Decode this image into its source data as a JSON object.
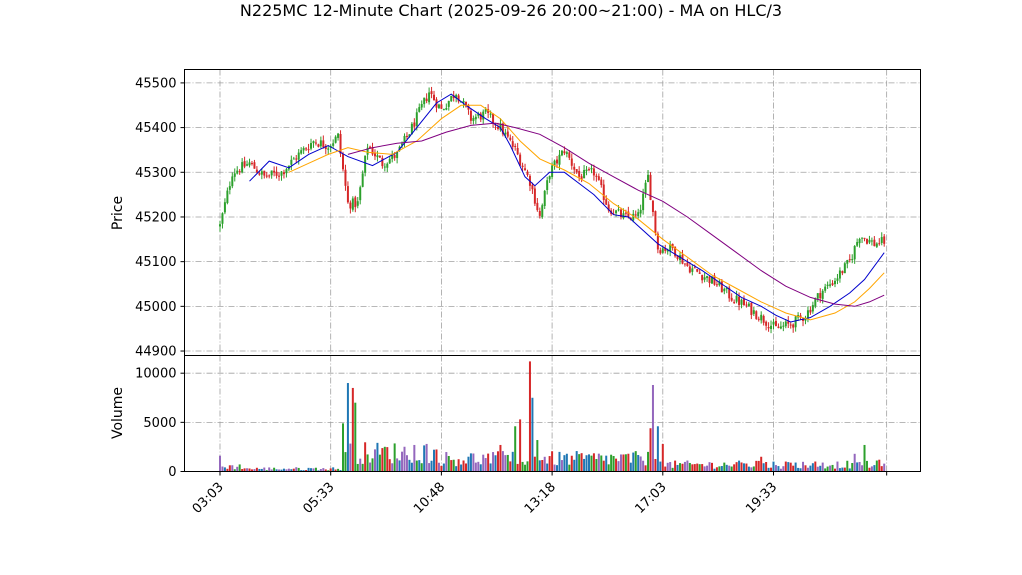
{
  "chart_data": {
    "type": "candlestick",
    "title": "N225MC 12-Minute Chart (2025-09-26 20:00~21:00) - MA on HLC/3",
    "price_panel": {
      "ylabel": "Price",
      "ylim": [
        44890,
        45530
      ],
      "yticks": [
        44900,
        45000,
        45100,
        45200,
        45300,
        45400,
        45500
      ]
    },
    "volume_panel": {
      "ylabel": "Volume",
      "ylim": [
        0,
        11800
      ],
      "yticks": [
        0,
        5000,
        10000
      ]
    },
    "x_tick_labels": [
      "03:03",
      "05:33",
      "10:48",
      "13:18",
      "17:03",
      "19:33"
    ],
    "grid": true,
    "colors": {
      "up": "#2ca02c",
      "down": "#d62728",
      "vol_a": "#1f77b4",
      "vol_b": "#d62728",
      "vol_c": "#2ca02c",
      "vol_d": "#9467bd",
      "ma_short": "#0000cc",
      "ma_mid": "#ffa500",
      "ma_long": "#800080"
    },
    "close_path": [
      [
        0,
        45180
      ],
      [
        5,
        45300
      ],
      [
        12,
        45320
      ],
      [
        18,
        45290
      ],
      [
        25,
        45300
      ],
      [
        32,
        45340
      ],
      [
        38,
        45370
      ],
      [
        44,
        45360
      ],
      [
        48,
        45380
      ],
      [
        52,
        45230
      ],
      [
        56,
        45230
      ],
      [
        60,
        45360
      ],
      [
        66,
        45320
      ],
      [
        72,
        45340
      ],
      [
        78,
        45400
      ],
      [
        85,
        45480
      ],
      [
        90,
        45440
      ],
      [
        96,
        45480
      ],
      [
        102,
        45420
      ],
      [
        108,
        45430
      ],
      [
        114,
        45400
      ],
      [
        120,
        45350
      ],
      [
        126,
        45280
      ],
      [
        130,
        45200
      ],
      [
        134,
        45300
      ],
      [
        140,
        45350
      ],
      [
        146,
        45290
      ],
      [
        152,
        45300
      ],
      [
        158,
        45220
      ],
      [
        164,
        45200
      ],
      [
        170,
        45200
      ],
      [
        174,
        45290
      ],
      [
        178,
        45130
      ],
      [
        184,
        45130
      ],
      [
        190,
        45090
      ],
      [
        196,
        45070
      ],
      [
        202,
        45050
      ],
      [
        208,
        45020
      ],
      [
        214,
        45000
      ],
      [
        220,
        44975
      ],
      [
        226,
        44950
      ],
      [
        232,
        44960
      ],
      [
        238,
        44980
      ],
      [
        244,
        45030
      ],
      [
        250,
        45060
      ],
      [
        256,
        45100
      ],
      [
        260,
        45160
      ],
      [
        266,
        45140
      ],
      [
        270,
        45145
      ]
    ],
    "volume_spikes": [
      [
        0,
        1600
      ],
      [
        50,
        4900
      ],
      [
        52,
        9000
      ],
      [
        54,
        8500
      ],
      [
        55,
        7000
      ],
      [
        79,
        2700
      ],
      [
        114,
        2700
      ],
      [
        120,
        4600
      ],
      [
        122,
        5300
      ],
      [
        126,
        11200
      ],
      [
        127,
        7500
      ],
      [
        129,
        3200
      ],
      [
        175,
        4400
      ],
      [
        176,
        8800
      ],
      [
        178,
        4600
      ],
      [
        180,
        2800
      ],
      [
        220,
        1500
      ],
      [
        258,
        1800
      ],
      [
        262,
        2700
      ],
      [
        268,
        1200
      ],
      [
        270,
        800
      ]
    ],
    "ma_series": [
      {
        "color": "#0000cc",
        "points": [
          [
            12,
            45280
          ],
          [
            20,
            45325
          ],
          [
            28,
            45310
          ],
          [
            36,
            45340
          ],
          [
            44,
            45360
          ],
          [
            52,
            45335
          ],
          [
            62,
            45315
          ],
          [
            72,
            45345
          ],
          [
            80,
            45400
          ],
          [
            88,
            45455
          ],
          [
            94,
            45475
          ],
          [
            100,
            45450
          ],
          [
            108,
            45420
          ],
          [
            114,
            45400
          ],
          [
            118,
            45360
          ],
          [
            124,
            45290
          ],
          [
            128,
            45270
          ],
          [
            134,
            45300
          ],
          [
            140,
            45300
          ],
          [
            146,
            45275
          ],
          [
            152,
            45250
          ],
          [
            160,
            45205
          ],
          [
            166,
            45200
          ],
          [
            172,
            45170
          ],
          [
            178,
            45140
          ],
          [
            184,
            45120
          ],
          [
            190,
            45100
          ],
          [
            196,
            45080
          ],
          [
            204,
            45050
          ],
          [
            212,
            45020
          ],
          [
            220,
            45000
          ],
          [
            226,
            44980
          ],
          [
            232,
            44965
          ],
          [
            240,
            44975
          ],
          [
            248,
            45000
          ],
          [
            256,
            45030
          ],
          [
            262,
            45060
          ],
          [
            270,
            45120
          ]
        ]
      },
      {
        "color": "#ffa500",
        "points": [
          [
            28,
            45300
          ],
          [
            36,
            45320
          ],
          [
            44,
            45340
          ],
          [
            52,
            45355
          ],
          [
            60,
            45345
          ],
          [
            70,
            45340
          ],
          [
            80,
            45370
          ],
          [
            90,
            45420
          ],
          [
            98,
            45450
          ],
          [
            106,
            45450
          ],
          [
            114,
            45420
          ],
          [
            122,
            45370
          ],
          [
            130,
            45330
          ],
          [
            140,
            45305
          ],
          [
            150,
            45275
          ],
          [
            160,
            45230
          ],
          [
            170,
            45195
          ],
          [
            180,
            45150
          ],
          [
            190,
            45110
          ],
          [
            200,
            45070
          ],
          [
            210,
            45040
          ],
          [
            220,
            45010
          ],
          [
            230,
            44985
          ],
          [
            240,
            44970
          ],
          [
            250,
            44985
          ],
          [
            258,
            45010
          ],
          [
            264,
            45040
          ],
          [
            270,
            45075
          ]
        ]
      },
      {
        "color": "#800080",
        "points": [
          [
            52,
            45340
          ],
          [
            62,
            45355
          ],
          [
            72,
            45365
          ],
          [
            82,
            45370
          ],
          [
            92,
            45390
          ],
          [
            102,
            45405
          ],
          [
            112,
            45410
          ],
          [
            120,
            45400
          ],
          [
            130,
            45385
          ],
          [
            140,
            45355
          ],
          [
            150,
            45320
          ],
          [
            160,
            45290
          ],
          [
            170,
            45260
          ],
          [
            180,
            45235
          ],
          [
            190,
            45200
          ],
          [
            200,
            45160
          ],
          [
            210,
            45120
          ],
          [
            220,
            45080
          ],
          [
            230,
            45045
          ],
          [
            240,
            45020
          ],
          [
            250,
            45005
          ],
          [
            258,
            45000
          ],
          [
            264,
            45010
          ],
          [
            270,
            45025
          ]
        ]
      }
    ]
  }
}
